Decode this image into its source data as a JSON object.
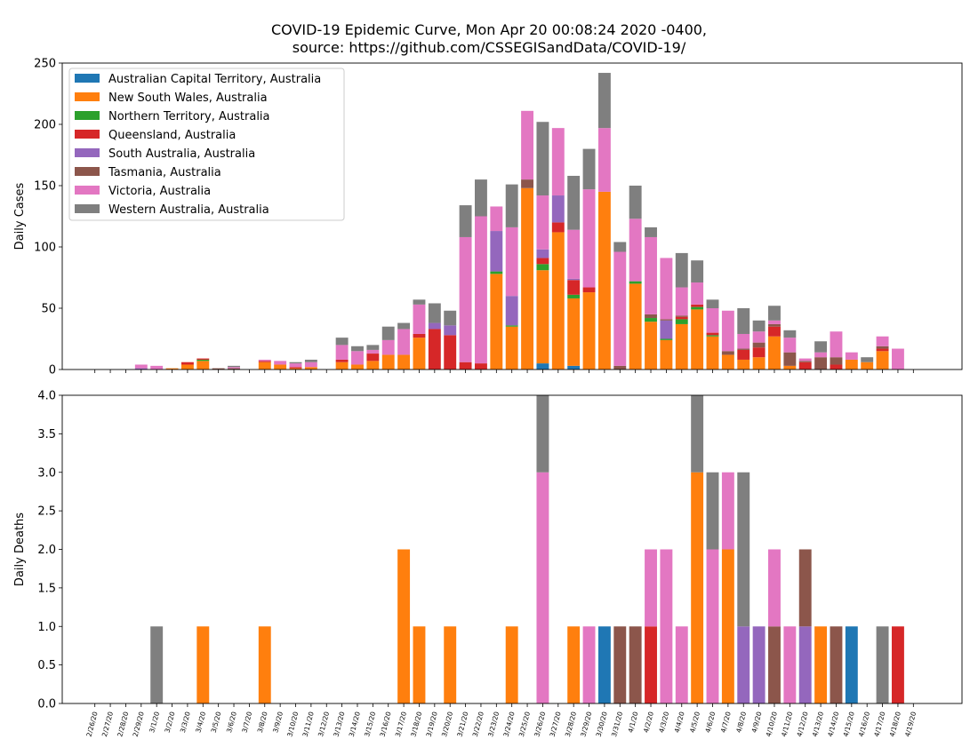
{
  "title_lines": [
    "COVID-19 Epidemic Curve, Mon Apr 20 00:08:24 2020 -0400,",
    "source: https://github.com/CSSEGISandData/COVID-19/"
  ],
  "chart_data": {
    "type": "bar",
    "stacked": true,
    "dates": [
      "2/26/20",
      "2/27/20",
      "2/28/20",
      "2/29/20",
      "3/1/20",
      "3/2/20",
      "3/3/20",
      "3/4/20",
      "3/5/20",
      "3/6/20",
      "3/7/20",
      "3/8/20",
      "3/9/20",
      "3/10/20",
      "3/11/20",
      "3/12/20",
      "3/13/20",
      "3/14/20",
      "3/15/20",
      "3/16/20",
      "3/17/20",
      "3/18/20",
      "3/19/20",
      "3/20/20",
      "3/21/20",
      "3/22/20",
      "3/23/20",
      "3/24/20",
      "3/25/20",
      "3/26/20",
      "3/27/20",
      "3/28/20",
      "3/29/20",
      "3/30/20",
      "3/31/20",
      "4/1/20",
      "4/2/20",
      "4/3/20",
      "4/4/20",
      "4/5/20",
      "4/6/20",
      "4/7/20",
      "4/8/20",
      "4/9/20",
      "4/10/20",
      "4/11/20",
      "4/12/20",
      "4/13/20",
      "4/14/20",
      "4/15/20",
      "4/16/20",
      "4/17/20",
      "4/18/20",
      "4/19/20"
    ],
    "legend_position": "top-left",
    "series": [
      {
        "name": "Australian Capital Territory, Australia",
        "color": "#1f77b4"
      },
      {
        "name": "New South Wales, Australia",
        "color": "#ff7f0e"
      },
      {
        "name": "Northern Territory, Australia",
        "color": "#2ca02c"
      },
      {
        "name": "Queensland, Australia",
        "color": "#d62728"
      },
      {
        "name": "South Australia, Australia",
        "color": "#9467bd"
      },
      {
        "name": "Tasmania, Australia",
        "color": "#8c564b"
      },
      {
        "name": "Victoria, Australia",
        "color": "#e377c2"
      },
      {
        "name": "Western Australia, Australia",
        "color": "#7f7f7f"
      }
    ],
    "panels": [
      {
        "ylabel": "Daily Cases",
        "ylim": [
          0,
          250
        ],
        "yticks": [
          "0",
          "50",
          "100",
          "150",
          "200",
          "250"
        ],
        "values": [
          [
            0,
            0,
            0,
            0,
            0,
            0,
            0,
            0,
            0,
            0,
            0,
            0,
            0,
            0,
            0,
            0,
            0,
            0,
            0,
            0,
            0,
            0,
            0,
            0,
            0,
            0,
            0,
            0,
            0,
            5,
            0,
            3,
            0,
            0,
            0,
            0,
            0,
            0,
            0,
            0,
            0,
            0,
            0,
            0,
            0,
            0,
            0,
            0,
            0,
            0,
            0,
            0,
            0,
            0
          ],
          [
            0,
            0,
            0,
            0,
            0,
            1,
            4,
            7,
            0,
            0,
            0,
            6,
            4,
            1,
            2,
            0,
            6,
            4,
            7,
            12,
            12,
            26,
            0,
            0,
            0,
            0,
            78,
            35,
            148,
            76,
            112,
            55,
            63,
            145,
            0,
            70,
            39,
            24,
            37,
            49,
            27,
            12,
            8,
            10,
            27,
            3,
            0,
            0,
            0,
            8,
            6,
            15,
            0,
            0
          ],
          [
            0,
            0,
            0,
            0,
            0,
            0,
            0,
            1,
            0,
            0,
            0,
            0,
            0,
            0,
            0,
            0,
            0,
            0,
            0,
            0,
            0,
            0,
            0,
            0,
            0,
            0,
            2,
            1,
            0,
            5,
            0,
            3,
            0,
            0,
            0,
            2,
            3,
            1,
            4,
            2,
            1,
            0,
            0,
            0,
            0,
            0,
            0,
            0,
            0,
            0,
            0,
            0,
            0,
            0
          ],
          [
            0,
            0,
            0,
            0,
            0,
            0,
            2,
            1,
            0,
            0,
            0,
            1,
            0,
            1,
            0,
            0,
            2,
            0,
            6,
            0,
            0,
            3,
            33,
            28,
            6,
            5,
            0,
            0,
            0,
            5,
            8,
            12,
            4,
            0,
            0,
            0,
            0,
            0,
            2,
            2,
            2,
            0,
            8,
            8,
            8,
            0,
            6,
            0,
            4,
            0,
            0,
            2,
            0,
            0
          ],
          [
            0,
            0,
            0,
            1,
            0,
            0,
            0,
            0,
            0,
            0,
            0,
            0,
            0,
            0,
            0,
            0,
            0,
            0,
            0,
            0,
            0,
            0,
            5,
            8,
            0,
            0,
            33,
            24,
            0,
            7,
            22,
            1,
            0,
            0,
            0,
            0,
            0,
            15,
            0,
            0,
            0,
            0,
            0,
            0,
            0,
            0,
            0,
            0,
            0,
            0,
            0,
            0,
            0,
            0
          ],
          [
            0,
            0,
            0,
            0,
            0,
            0,
            0,
            0,
            1,
            1,
            0,
            0,
            0,
            0,
            0,
            0,
            0,
            0,
            0,
            0,
            0,
            0,
            0,
            0,
            0,
            0,
            0,
            0,
            7,
            0,
            0,
            0,
            0,
            0,
            3,
            0,
            3,
            1,
            1,
            0,
            0,
            3,
            1,
            4,
            2,
            11,
            1,
            10,
            6,
            0,
            0,
            2,
            0,
            0
          ],
          [
            0,
            0,
            0,
            3,
            3,
            0,
            0,
            0,
            0,
            1,
            0,
            1,
            3,
            3,
            4,
            0,
            12,
            11,
            3,
            12,
            21,
            24,
            0,
            0,
            102,
            120,
            20,
            56,
            56,
            44,
            55,
            40,
            80,
            52,
            93,
            51,
            63,
            50,
            23,
            18,
            20,
            33,
            12,
            9,
            3,
            12,
            2,
            4,
            21,
            6,
            0,
            8,
            17,
            0
          ],
          [
            0,
            0,
            0,
            0,
            0,
            0,
            0,
            0,
            0,
            1,
            0,
            0,
            0,
            1,
            2,
            0,
            6,
            4,
            4,
            11,
            5,
            4,
            16,
            12,
            26,
            30,
            0,
            35,
            0,
            60,
            0,
            44,
            33,
            45,
            8,
            27,
            8,
            0,
            28,
            18,
            7,
            0,
            21,
            9,
            12,
            6,
            0,
            9,
            0,
            0,
            4,
            0,
            0,
            0
          ]
        ]
      },
      {
        "ylabel": "Daily Deaths",
        "ylim": [
          0,
          4
        ],
        "yticks": [
          "0.0",
          "0.5",
          "1.0",
          "1.5",
          "2.0",
          "2.5",
          "3.0",
          "3.5",
          "4.0"
        ],
        "values": [
          [
            0,
            0,
            0,
            0,
            0,
            0,
            0,
            0,
            0,
            0,
            0,
            0,
            0,
            0,
            0,
            0,
            0,
            0,
            0,
            0,
            0,
            0,
            0,
            0,
            0,
            0,
            0,
            0,
            0,
            0,
            0,
            0,
            0,
            1,
            0,
            0,
            0,
            0,
            0,
            0,
            0,
            0,
            0,
            0,
            0,
            0,
            0,
            0,
            0,
            1,
            0,
            0,
            0,
            0
          ],
          [
            0,
            0,
            0,
            0,
            0,
            0,
            0,
            1,
            0,
            0,
            0,
            1,
            0,
            0,
            0,
            0,
            0,
            0,
            0,
            0,
            2,
            1,
            0,
            1,
            0,
            0,
            0,
            1,
            0,
            0,
            0,
            1,
            0,
            0,
            0,
            0,
            0,
            0,
            0,
            3,
            0,
            2,
            0,
            0,
            0,
            0,
            0,
            1,
            0,
            0,
            0,
            0,
            0,
            0
          ],
          [
            0,
            0,
            0,
            0,
            0,
            0,
            0,
            0,
            0,
            0,
            0,
            0,
            0,
            0,
            0,
            0,
            0,
            0,
            0,
            0,
            0,
            0,
            0,
            0,
            0,
            0,
            0,
            0,
            0,
            0,
            0,
            0,
            0,
            0,
            0,
            0,
            0,
            0,
            0,
            0,
            0,
            0,
            0,
            0,
            0,
            0,
            0,
            0,
            0,
            0,
            0,
            0,
            0,
            0
          ],
          [
            0,
            0,
            0,
            0,
            0,
            0,
            0,
            0,
            0,
            0,
            0,
            0,
            0,
            0,
            0,
            0,
            0,
            0,
            0,
            0,
            0,
            0,
            0,
            0,
            0,
            0,
            0,
            0,
            0,
            0,
            0,
            0,
            0,
            0,
            0,
            0,
            1,
            0,
            0,
            0,
            0,
            0,
            0,
            0,
            0,
            0,
            0,
            0,
            0,
            0,
            0,
            0,
            1,
            0
          ],
          [
            0,
            0,
            0,
            0,
            0,
            0,
            0,
            0,
            0,
            0,
            0,
            0,
            0,
            0,
            0,
            0,
            0,
            0,
            0,
            0,
            0,
            0,
            0,
            0,
            0,
            0,
            0,
            0,
            0,
            0,
            0,
            0,
            0,
            0,
            0,
            0,
            0,
            0,
            0,
            0,
            0,
            0,
            1,
            1,
            0,
            0,
            1,
            0,
            0,
            0,
            0,
            0,
            0,
            0
          ],
          [
            0,
            0,
            0,
            0,
            0,
            0,
            0,
            0,
            0,
            0,
            0,
            0,
            0,
            0,
            0,
            0,
            0,
            0,
            0,
            0,
            0,
            0,
            0,
            0,
            0,
            0,
            0,
            0,
            0,
            0,
            0,
            0,
            0,
            0,
            1,
            1,
            0,
            0,
            0,
            0,
            0,
            0,
            0,
            0,
            1,
            0,
            1,
            0,
            1,
            0,
            0,
            0,
            0,
            0
          ],
          [
            0,
            0,
            0,
            0,
            0,
            0,
            0,
            0,
            0,
            0,
            0,
            0,
            0,
            0,
            0,
            0,
            0,
            0,
            0,
            0,
            0,
            0,
            0,
            0,
            0,
            0,
            0,
            0,
            0,
            3,
            0,
            0,
            1,
            0,
            0,
            0,
            1,
            2,
            1,
            0,
            2,
            1,
            0,
            0,
            1,
            1,
            0,
            0,
            0,
            0,
            0,
            0,
            0,
            0
          ],
          [
            0,
            0,
            0,
            0,
            1,
            0,
            0,
            0,
            0,
            0,
            0,
            0,
            0,
            0,
            0,
            0,
            0,
            0,
            0,
            0,
            0,
            0,
            0,
            0,
            0,
            0,
            0,
            0,
            0,
            1,
            0,
            0,
            0,
            0,
            0,
            0,
            0,
            0,
            0,
            1,
            1,
            0,
            2,
            0,
            0,
            0,
            0,
            0,
            0,
            0,
            0,
            1,
            0,
            0
          ]
        ]
      }
    ]
  }
}
